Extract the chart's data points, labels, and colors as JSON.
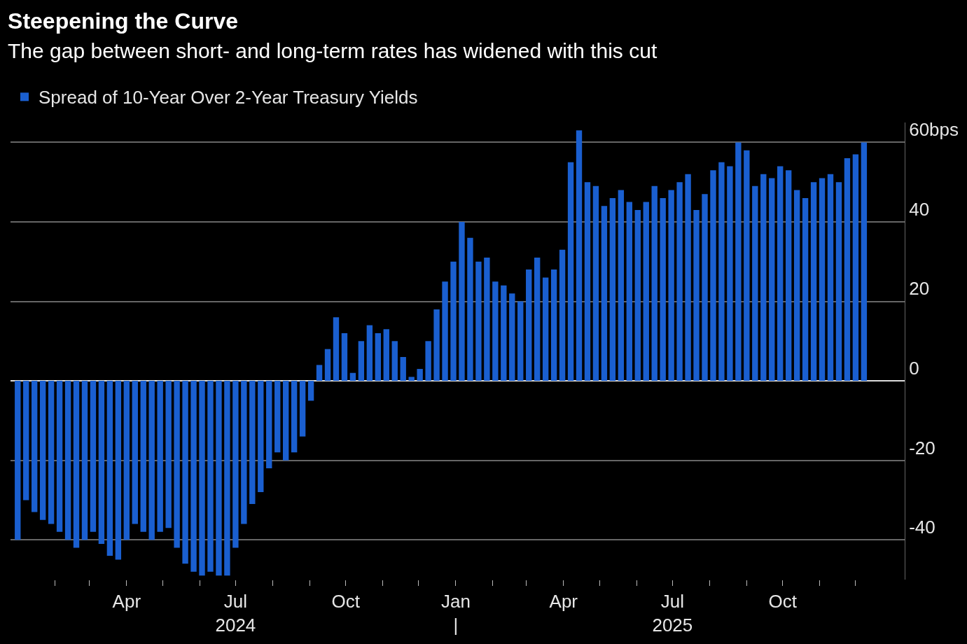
{
  "chart_data": {
    "type": "bar",
    "title": "Steepening the Curve",
    "subtitle": "The gap between short- and long-term rates has widened with this cut",
    "x": [
      "2024-01-01",
      "2024-01-08",
      "2024-01-15",
      "2024-01-22",
      "2024-01-29",
      "2024-02-05",
      "2024-02-12",
      "2024-02-19",
      "2024-02-26",
      "2024-03-04",
      "2024-03-11",
      "2024-03-18",
      "2024-03-25",
      "2024-04-01",
      "2024-04-08",
      "2024-04-15",
      "2024-04-22",
      "2024-04-29",
      "2024-05-06",
      "2024-05-13",
      "2024-05-20",
      "2024-05-27",
      "2024-06-03",
      "2024-06-10",
      "2024-06-17",
      "2024-06-24",
      "2024-07-01",
      "2024-07-08",
      "2024-07-15",
      "2024-07-22",
      "2024-07-29",
      "2024-08-05",
      "2024-08-12",
      "2024-08-19",
      "2024-08-26",
      "2024-09-02",
      "2024-09-09",
      "2024-09-16",
      "2024-09-23",
      "2024-09-30",
      "2024-10-07",
      "2024-10-14",
      "2024-10-21",
      "2024-10-28",
      "2024-11-04",
      "2024-11-11",
      "2024-11-18",
      "2024-11-25",
      "2024-12-02",
      "2024-12-09",
      "2024-12-16",
      "2024-12-23",
      "2024-12-30",
      "2025-01-06",
      "2025-01-13",
      "2025-01-20",
      "2025-01-27",
      "2025-02-03",
      "2025-02-10",
      "2025-02-17",
      "2025-02-24",
      "2025-03-03",
      "2025-03-10",
      "2025-03-17",
      "2025-03-24",
      "2025-03-31",
      "2025-04-07",
      "2025-04-14",
      "2025-04-21",
      "2025-04-28",
      "2025-05-05",
      "2025-05-12",
      "2025-05-19",
      "2025-05-26",
      "2025-06-02",
      "2025-06-09",
      "2025-06-16",
      "2025-06-23",
      "2025-06-30",
      "2025-07-07",
      "2025-07-14",
      "2025-07-21",
      "2025-07-28",
      "2025-08-04",
      "2025-08-11",
      "2025-08-18",
      "2025-08-25",
      "2025-09-01",
      "2025-09-08",
      "2025-09-15",
      "2025-09-22",
      "2025-09-29",
      "2025-10-06",
      "2025-10-13",
      "2025-10-20",
      "2025-10-27",
      "2025-11-03",
      "2025-11-10",
      "2025-11-17",
      "2025-11-24",
      "2025-12-01",
      "2025-12-08"
    ],
    "series": [
      {
        "name": "Spread of 10-Year Over 2-Year Treasury Yields",
        "color": "#1a5fd0",
        "values": [
          -40,
          -30,
          -33,
          -35,
          -36,
          -38,
          -40,
          -42,
          -40,
          -38,
          -41,
          -44,
          -45,
          -40,
          -36,
          -38,
          -40,
          -38,
          -37,
          -42,
          -46,
          -48,
          -49,
          -48,
          -49,
          -49,
          -42,
          -36,
          -31,
          -28,
          -22,
          -18,
          -20,
          -18,
          -14,
          -5,
          4,
          8,
          16,
          12,
          2,
          10,
          14,
          12,
          13,
          10,
          6,
          1,
          3,
          10,
          18,
          25,
          30,
          40,
          36,
          30,
          31,
          25,
          24,
          22,
          20,
          28,
          31,
          26,
          28,
          33,
          55,
          63,
          50,
          49,
          44,
          46,
          48,
          45,
          43,
          45,
          49,
          46,
          48,
          50,
          52,
          43,
          47,
          53,
          55,
          54,
          60,
          58,
          49,
          52,
          51,
          54,
          53,
          48,
          46,
          50,
          51,
          52,
          50,
          56,
          57,
          60
        ]
      }
    ],
    "xlim": [
      "2023-12-26",
      "2026-01-11"
    ],
    "xticks": [
      {
        "value": "2024-02-01",
        "label": null
      },
      {
        "value": "2024-03-01",
        "label": null
      },
      {
        "value": "2024-04-01",
        "label": "Apr"
      },
      {
        "value": "2024-05-01",
        "label": null
      },
      {
        "value": "2024-06-01",
        "label": null
      },
      {
        "value": "2024-07-01",
        "label": "Jul\n2024"
      },
      {
        "value": "2024-08-01",
        "label": null
      },
      {
        "value": "2024-09-01",
        "label": null
      },
      {
        "value": "2024-10-01",
        "label": "Oct"
      },
      {
        "value": "2024-11-01",
        "label": null
      },
      {
        "value": "2024-12-01",
        "label": null
      },
      {
        "value": "2025-01-01",
        "label": "Jan\n|"
      },
      {
        "value": "2025-02-01",
        "label": null
      },
      {
        "value": "2025-03-01",
        "label": null
      },
      {
        "value": "2025-04-01",
        "label": "Apr"
      },
      {
        "value": "2025-05-01",
        "label": null
      },
      {
        "value": "2025-06-01",
        "label": null
      },
      {
        "value": "2025-07-01",
        "label": "Jul\n2025"
      },
      {
        "value": "2025-08-01",
        "label": null
      },
      {
        "value": "2025-09-01",
        "label": null
      },
      {
        "value": "2025-10-01",
        "label": "Oct"
      },
      {
        "value": "2025-11-01",
        "label": null
      },
      {
        "value": "2025-12-01",
        "label": null
      }
    ],
    "ylim": [
      -50,
      65
    ],
    "yticks": [
      -40,
      -20,
      0,
      20,
      {
        "value": 60,
        "label": "60bps"
      },
      40
    ],
    "grid": "y",
    "legend": "top left"
  }
}
